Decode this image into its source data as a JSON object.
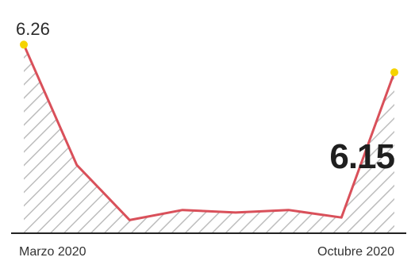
{
  "chart_data": {
    "type": "area",
    "x_start_label": "Marzo 2020",
    "x_end_label": "Octubre 2020",
    "values": [
      6.26,
      5.78,
      5.56,
      5.6,
      5.59,
      5.6,
      5.57,
      6.15
    ],
    "start_value_label": "6.26",
    "end_value_label": "6.15",
    "ylim": [
      5.52,
      6.28
    ],
    "grid": false,
    "colors": {
      "line": "#d9505a",
      "marker": "#f5d300",
      "hatch": "#bdbdbd",
      "axis": "#222222"
    }
  }
}
